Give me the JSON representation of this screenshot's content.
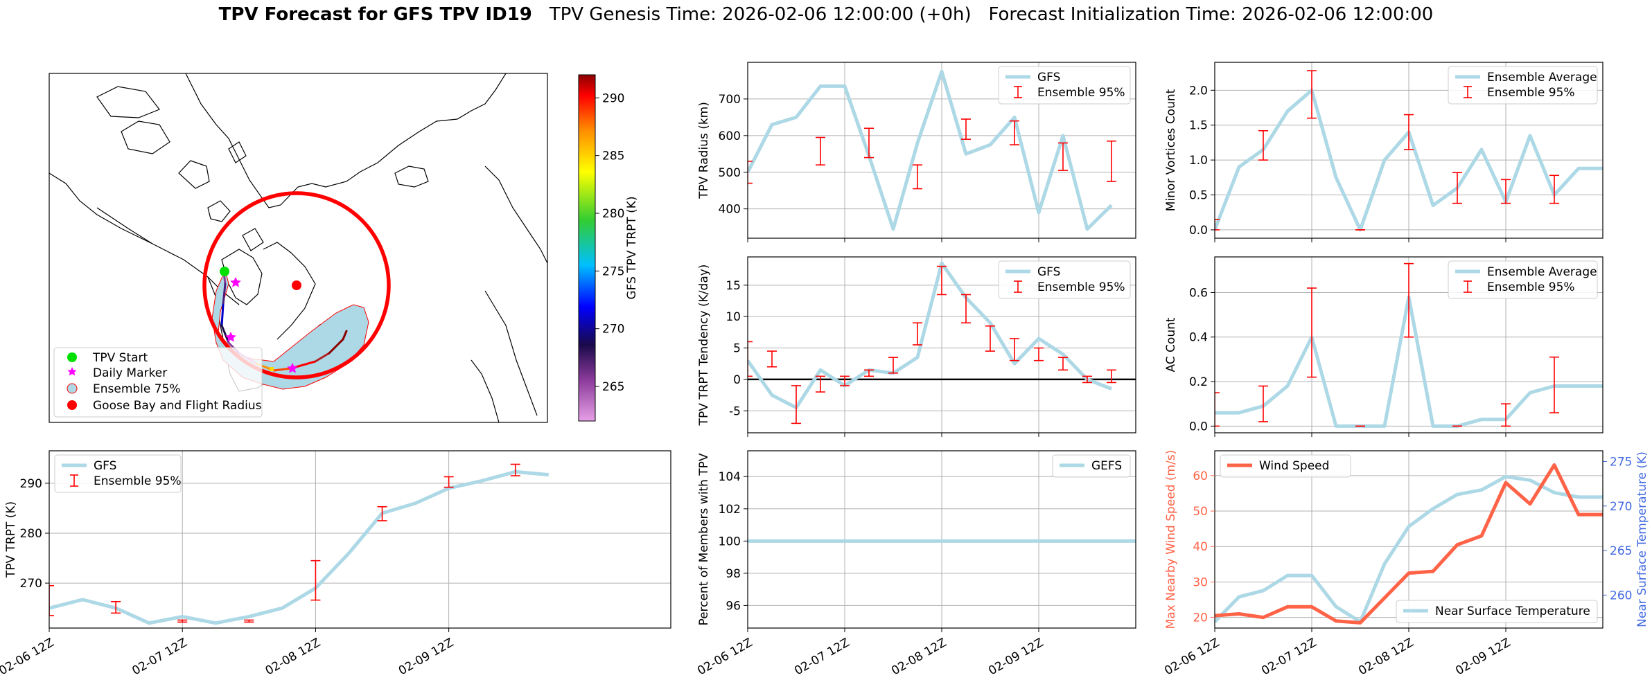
{
  "title": {
    "bold": "TPV Forecast for GFS TPV ID19",
    "genesis": "TPV Genesis Time: 2026-02-06 12:00:00 (+0h)",
    "init": "Forecast Initialization Time: 2026-02-06 12:00:00"
  },
  "colors": {
    "line": "#add8e6",
    "err": "#ff0000",
    "wind": "#ff6347",
    "temp_axis": "#4169e1"
  },
  "chart_data": [
    {
      "id": "map",
      "type": "map",
      "colorbar": {
        "label": "GFS TPV TRPT (K)",
        "ticks": [
          265,
          270,
          275,
          280,
          285,
          290
        ],
        "range": [
          262,
          292
        ]
      },
      "legend": [
        "TPV Start",
        "Daily Marker",
        "Ensemble 75%",
        "Goose Bay and Flight Radius"
      ]
    },
    {
      "id": "radius",
      "type": "line",
      "ylabel": "TPV Radius (km)",
      "ylim": [
        320,
        800
      ],
      "yticks": [
        400,
        500,
        600,
        700
      ],
      "xticks": [
        "02-06 12Z",
        "02-07 12Z",
        "02-08 12Z",
        "02-09 12Z"
      ],
      "legend": [
        "GFS",
        "Ensemble 95%"
      ],
      "x": [
        0,
        3,
        6,
        9,
        12,
        15,
        18,
        21,
        24,
        27,
        30,
        33,
        36,
        39,
        42,
        45,
        48,
        51,
        54,
        57,
        60,
        63,
        66
      ],
      "values": [
        500,
        630,
        650,
        735,
        735,
        545,
        345,
        580,
        775,
        550,
        575,
        650,
        390,
        600,
        345,
        410,
        null,
        null,
        null,
        null,
        null,
        null,
        null
      ],
      "errorbars": [
        [
          0,
          470,
          530
        ],
        [
          9,
          520,
          595
        ],
        [
          15,
          540,
          620
        ],
        [
          21,
          455,
          520
        ],
        [
          27,
          590,
          645
        ],
        [
          33,
          575,
          640
        ],
        [
          39,
          505,
          580
        ],
        [
          45,
          475,
          585
        ]
      ]
    },
    {
      "id": "minor",
      "type": "line",
      "ylabel": "Minor Vortices Count",
      "ylim": [
        -0.12,
        2.4
      ],
      "yticks": [
        "0.0",
        "0.5",
        "1.0",
        "1.5",
        "2.0"
      ],
      "xticks": [
        "02-06 12Z",
        "02-07 12Z",
        "02-08 12Z",
        "02-09 12Z"
      ],
      "legend": [
        "Ensemble Average",
        "Ensemble 95%"
      ],
      "x": [
        0,
        3,
        6,
        9,
        12,
        15,
        18,
        21,
        24,
        27,
        30,
        33,
        36,
        39,
        42,
        45,
        48
      ],
      "values": [
        0.0,
        0.9,
        1.15,
        1.7,
        2.0,
        0.75,
        0.0,
        1.0,
        1.4,
        0.35,
        0.6,
        1.15,
        0.4,
        1.35,
        0.5,
        0.88,
        0.88
      ],
      "errorbars": [
        [
          0,
          0.0,
          0.15
        ],
        [
          6,
          1.0,
          1.42
        ],
        [
          12,
          1.6,
          2.28
        ],
        [
          18,
          0.0,
          0.0
        ],
        [
          24,
          1.15,
          1.65
        ],
        [
          30,
          0.38,
          0.82
        ],
        [
          36,
          0.38,
          0.72
        ],
        [
          42,
          0.38,
          0.78
        ]
      ]
    },
    {
      "id": "tendency",
      "type": "line",
      "ylabel": "TPV TRPT Tendency (K/day)",
      "ylim": [
        -8.5,
        19.5
      ],
      "yticks": [
        -5,
        0,
        5,
        10,
        15
      ],
      "xticks": [
        "02-06 12Z",
        "02-07 12Z",
        "02-08 12Z",
        "02-09 12Z"
      ],
      "legend": [
        "GFS",
        "Ensemble 95%"
      ],
      "x": [
        0,
        3,
        6,
        9,
        12,
        15,
        18,
        21,
        24,
        27,
        30,
        33,
        36,
        39,
        42
      ],
      "values": [
        3.0,
        -2.5,
        -4.5,
        1.5,
        -1.0,
        1.5,
        1.0,
        3.5,
        18.5,
        13.0,
        9.0,
        2.5,
        6.5,
        4.0,
        0.0
      ],
      "values_tail": [
        [
          45,
          -1.5
        ]
      ],
      "errorbars": [
        [
          0,
          0.5,
          6.0
        ],
        [
          3,
          2.0,
          4.5
        ],
        [
          6,
          -7.0,
          -1.0
        ],
        [
          9,
          -2.0,
          0.5
        ],
        [
          12,
          -1.0,
          0.5
        ],
        [
          15,
          0.5,
          1.5
        ],
        [
          18,
          1.0,
          3.5
        ],
        [
          21,
          5.5,
          9.0
        ],
        [
          24,
          13.5,
          18.0
        ],
        [
          27,
          9.0,
          13.5
        ],
        [
          30,
          4.5,
          8.5
        ],
        [
          33,
          3.0,
          6.5
        ],
        [
          36,
          3.0,
          5.0
        ],
        [
          39,
          1.5,
          3.5
        ],
        [
          42,
          -0.5,
          0.5
        ],
        [
          45,
          -0.5,
          1.5
        ]
      ]
    },
    {
      "id": "ac",
      "type": "line",
      "ylabel": "AC Count",
      "ylim": [
        -0.03,
        0.76
      ],
      "yticks": [
        "0.0",
        "0.2",
        "0.4",
        "0.6"
      ],
      "xticks": [
        "02-06 12Z",
        "02-07 12Z",
        "02-08 12Z",
        "02-09 12Z"
      ],
      "legend": [
        "Ensemble Average",
        "Ensemble 95%"
      ],
      "x": [
        0,
        3,
        6,
        9,
        12,
        15,
        18,
        21,
        24,
        27,
        30,
        33,
        36,
        39,
        42,
        45,
        48
      ],
      "values": [
        0.06,
        0.06,
        0.09,
        0.18,
        0.4,
        0.0,
        0.0,
        0.0,
        0.58,
        0.0,
        0.0,
        0.03,
        0.03,
        0.15,
        0.18,
        0.18,
        0.18
      ],
      "errorbars": [
        [
          0,
          0.0,
          0.15
        ],
        [
          6,
          0.02,
          0.18
        ],
        [
          12,
          0.22,
          0.62
        ],
        [
          18,
          0.0,
          0.0
        ],
        [
          24,
          0.4,
          0.73
        ],
        [
          30,
          0.0,
          0.0
        ],
        [
          36,
          0.0,
          0.1
        ],
        [
          42,
          0.06,
          0.31
        ]
      ]
    },
    {
      "id": "trpt",
      "type": "line",
      "ylabel": "TPV TRPT (K)",
      "ylim": [
        261,
        296.5
      ],
      "yticks": [
        270,
        280,
        290
      ],
      "xticks": [
        "02-06 12Z",
        "02-07 12Z",
        "02-08 12Z",
        "02-09 12Z"
      ],
      "legend": [
        "GFS",
        "Ensemble 95%"
      ],
      "x": [
        0,
        3,
        6,
        9,
        12,
        15,
        18,
        21,
        24,
        27,
        30,
        33,
        36,
        39,
        42,
        45
      ],
      "values": [
        265.0,
        266.7,
        265.0,
        262.0,
        263.3,
        262.0,
        263.3,
        265.0,
        269.0,
        276.0,
        284.0,
        286.0,
        289.0,
        290.5,
        292.3,
        291.7
      ],
      "errorbars": [
        [
          0,
          263.5,
          269.5
        ],
        [
          6,
          264.0,
          266.3
        ],
        [
          12,
          262.2,
          262.6
        ],
        [
          18,
          262.2,
          262.6
        ],
        [
          24,
          266.6,
          274.5
        ],
        [
          30,
          282.5,
          285.3
        ],
        [
          36,
          289.2,
          291.3
        ],
        [
          42,
          291.5,
          293.8
        ]
      ]
    },
    {
      "id": "percent",
      "type": "line",
      "ylabel": "Percent of Members with TPV",
      "ylim": [
        94.6,
        105.6
      ],
      "yticks": [
        96,
        98,
        100,
        102,
        104
      ],
      "xticks": [
        "02-06 12Z",
        "02-07 12Z",
        "02-08 12Z",
        "02-09 12Z"
      ],
      "legend": [
        "GEFS"
      ],
      "x": [
        0,
        48
      ],
      "values": [
        100,
        100
      ]
    },
    {
      "id": "wind",
      "type": "line",
      "ylabel": "Max Nearby Wind Speed (m/s)",
      "ylabel2": "Near Surface Temperature (K)",
      "ylim": [
        17,
        67
      ],
      "ylim2": [
        256.3,
        276.2
      ],
      "yticks": [
        20,
        30,
        40,
        50,
        60
      ],
      "yticks2": [
        260,
        265,
        270,
        275
      ],
      "xticks": [
        "02-06 12Z",
        "02-07 12Z",
        "02-08 12Z",
        "02-09 12Z"
      ],
      "legend": [
        "Wind Speed"
      ],
      "legend2": [
        "Near Surface Temperature"
      ],
      "x": [
        0,
        3,
        6,
        9,
        12,
        15,
        18,
        21,
        24,
        27,
        30,
        33,
        36,
        39,
        42,
        45,
        48
      ],
      "wind": [
        20.5,
        21.0,
        20.0,
        23.0,
        23.0,
        19.0,
        18.5,
        25.5,
        32.5,
        33.0,
        40.5,
        43.0,
        58.0,
        52.0,
        63.0,
        49.0,
        49.0
      ],
      "temp": [
        257.0,
        259.8,
        260.5,
        262.2,
        262.2,
        258.7,
        257.0,
        263.5,
        267.7,
        269.7,
        271.3,
        271.8,
        273.3,
        272.9,
        271.5,
        271.0,
        271.0
      ]
    }
  ]
}
